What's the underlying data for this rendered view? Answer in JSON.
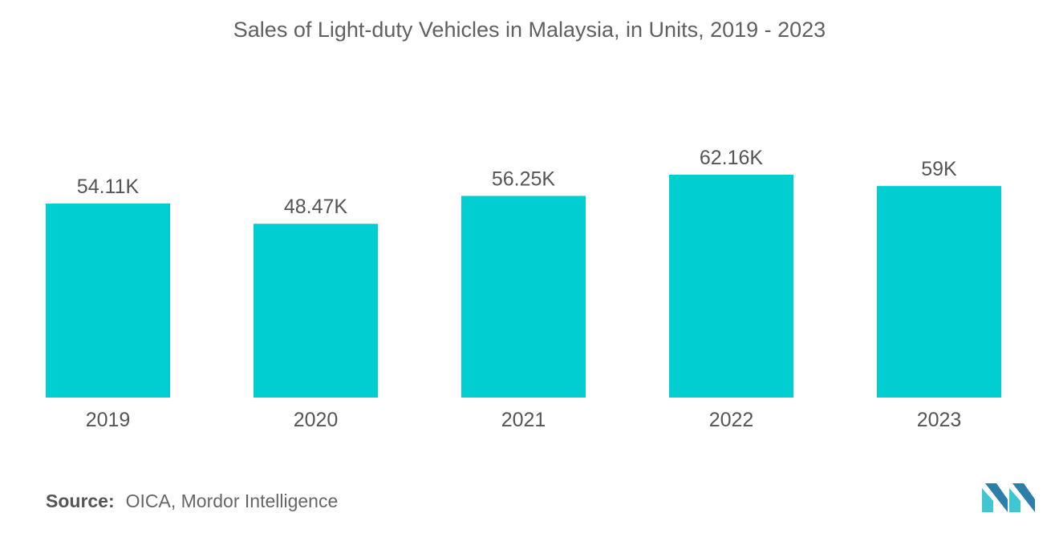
{
  "chart_data": {
    "type": "bar",
    "title": "Sales of Light-duty Vehicles in Malaysia, in Units, 2019 - 2023",
    "categories": [
      "2019",
      "2020",
      "2021",
      "2022",
      "2023"
    ],
    "values": [
      54110,
      48470,
      56250,
      62160,
      59000
    ],
    "value_labels": [
      "54.11K",
      "48.47K",
      "56.25K",
      "62.16K",
      "59K"
    ],
    "xlabel": "",
    "ylabel": "",
    "ylim": [
      0,
      62160
    ],
    "grid": false,
    "bar_color": "#00CED1"
  },
  "source": {
    "label": "Source:",
    "text": "OICA, Mordor Intelligence"
  },
  "logo": {
    "icon": "mordor-intelligence-logo-icon",
    "color_dark": "#2C7FA8",
    "color_light": "#3FC6D1"
  }
}
